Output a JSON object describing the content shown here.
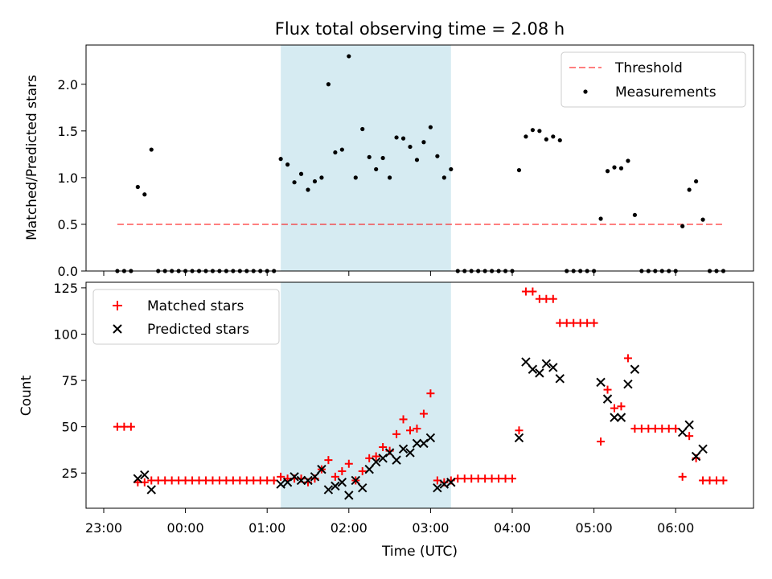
{
  "figure": {
    "title": "Flux total observing time = 2.08 h",
    "x_tick_labels": [
      "23:00",
      "00:00",
      "01:00",
      "02:00",
      "03:00",
      "04:00",
      "05:00",
      "06:00"
    ],
    "xlabel": "Time (UTC)",
    "shaded_region": {
      "start": "01:10",
      "end": "03:15",
      "color": "#add8e6"
    }
  },
  "chart_data": [
    {
      "type": "scatter",
      "ylabel": "Matched/Predicted stars",
      "ylim": [
        0,
        2.42
      ],
      "y_ticks": [
        "0.0",
        "0.5",
        "1.0",
        "1.5",
        "2.0"
      ],
      "legend": {
        "placement": "top-right",
        "entries": [
          "Threshold",
          "Measurements"
        ]
      },
      "threshold": {
        "name": "Threshold",
        "value": 0.5,
        "x_start": "23:10",
        "x_end": "06:35",
        "color": "#ff0000",
        "alpha": 0.5,
        "style": "dashed"
      },
      "series": [
        {
          "name": "Measurements",
          "color": "#000000",
          "points": [
            [
              "23:10",
              0
            ],
            [
              "23:15",
              0
            ],
            [
              "23:20",
              0
            ],
            [
              "23:25",
              0.9
            ],
            [
              "23:30",
              0.82
            ],
            [
              "23:35",
              1.3
            ],
            [
              "23:40",
              0
            ],
            [
              "23:45",
              0
            ],
            [
              "23:50",
              0
            ],
            [
              "23:55",
              0
            ],
            [
              "00:00",
              0
            ],
            [
              "00:05",
              0
            ],
            [
              "00:10",
              0
            ],
            [
              "00:15",
              0
            ],
            [
              "00:20",
              0
            ],
            [
              "00:25",
              0
            ],
            [
              "00:30",
              0
            ],
            [
              "00:35",
              0
            ],
            [
              "00:40",
              0
            ],
            [
              "00:45",
              0
            ],
            [
              "00:50",
              0
            ],
            [
              "00:55",
              0
            ],
            [
              "01:00",
              0
            ],
            [
              "01:05",
              0
            ],
            [
              "01:10",
              1.2
            ],
            [
              "01:15",
              1.14
            ],
            [
              "01:20",
              0.95
            ],
            [
              "01:25",
              1.04
            ],
            [
              "01:30",
              0.87
            ],
            [
              "01:35",
              0.96
            ],
            [
              "01:40",
              1.0
            ],
            [
              "01:45",
              2.0
            ],
            [
              "01:50",
              1.27
            ],
            [
              "01:55",
              1.3
            ],
            [
              "02:00",
              2.3
            ],
            [
              "02:05",
              1.0
            ],
            [
              "02:10",
              1.52
            ],
            [
              "02:15",
              1.22
            ],
            [
              "02:20",
              1.09
            ],
            [
              "02:25",
              1.21
            ],
            [
              "02:30",
              1.0
            ],
            [
              "02:35",
              1.43
            ],
            [
              "02:40",
              1.42
            ],
            [
              "02:45",
              1.33
            ],
            [
              "02:50",
              1.19
            ],
            [
              "02:55",
              1.38
            ],
            [
              "03:00",
              1.54
            ],
            [
              "03:05",
              1.23
            ],
            [
              "03:10",
              1.0
            ],
            [
              "03:15",
              1.09
            ],
            [
              "03:20",
              0
            ],
            [
              "03:25",
              0
            ],
            [
              "03:30",
              0
            ],
            [
              "03:35",
              0
            ],
            [
              "03:40",
              0
            ],
            [
              "03:45",
              0
            ],
            [
              "03:50",
              0
            ],
            [
              "03:55",
              0
            ],
            [
              "04:00",
              0
            ],
            [
              "04:05",
              1.08
            ],
            [
              "04:10",
              1.44
            ],
            [
              "04:15",
              1.51
            ],
            [
              "04:20",
              1.5
            ],
            [
              "04:25",
              1.41
            ],
            [
              "04:30",
              1.44
            ],
            [
              "04:35",
              1.4
            ],
            [
              "04:40",
              0
            ],
            [
              "04:45",
              0
            ],
            [
              "04:50",
              0
            ],
            [
              "04:55",
              0
            ],
            [
              "05:00",
              0
            ],
            [
              "05:05",
              0.56
            ],
            [
              "05:10",
              1.07
            ],
            [
              "05:15",
              1.11
            ],
            [
              "05:20",
              1.1
            ],
            [
              "05:25",
              1.18
            ],
            [
              "05:30",
              0.6
            ],
            [
              "05:35",
              0
            ],
            [
              "05:40",
              0
            ],
            [
              "05:45",
              0
            ],
            [
              "05:50",
              0
            ],
            [
              "05:55",
              0
            ],
            [
              "06:00",
              0
            ],
            [
              "06:05",
              0.48
            ],
            [
              "06:10",
              0.87
            ],
            [
              "06:15",
              0.96
            ],
            [
              "06:20",
              0.55
            ],
            [
              "06:25",
              0
            ],
            [
              "06:30",
              0
            ],
            [
              "06:35",
              0
            ]
          ]
        }
      ]
    },
    {
      "type": "scatter",
      "ylabel": "Count",
      "ylim": [
        6,
        128
      ],
      "y_ticks": [
        "25",
        "50",
        "75",
        "100",
        "125"
      ],
      "legend": {
        "placement": "top-left",
        "entries": [
          "Matched stars",
          "Predicted stars"
        ]
      },
      "series": [
        {
          "name": "Matched stars",
          "marker": "plus",
          "color": "#ff0000",
          "points": [
            [
              "23:10",
              50
            ],
            [
              "23:15",
              50
            ],
            [
              "23:20",
              50
            ],
            [
              "23:25",
              20
            ],
            [
              "23:30",
              20
            ],
            [
              "23:35",
              21
            ],
            [
              "23:40",
              21
            ],
            [
              "23:45",
              21
            ],
            [
              "23:50",
              21
            ],
            [
              "23:55",
              21
            ],
            [
              "00:00",
              21
            ],
            [
              "00:05",
              21
            ],
            [
              "00:10",
              21
            ],
            [
              "00:15",
              21
            ],
            [
              "00:20",
              21
            ],
            [
              "00:25",
              21
            ],
            [
              "00:30",
              21
            ],
            [
              "00:35",
              21
            ],
            [
              "00:40",
              21
            ],
            [
              "00:45",
              21
            ],
            [
              "00:50",
              21
            ],
            [
              "00:55",
              21
            ],
            [
              "01:00",
              21
            ],
            [
              "01:05",
              21
            ],
            [
              "01:10",
              23
            ],
            [
              "01:15",
              22
            ],
            [
              "01:20",
              22
            ],
            [
              "01:25",
              22
            ],
            [
              "01:30",
              20
            ],
            [
              "01:35",
              22
            ],
            [
              "01:40",
              27
            ],
            [
              "01:45",
              32
            ],
            [
              "01:50",
              23
            ],
            [
              "01:55",
              26
            ],
            [
              "02:00",
              30
            ],
            [
              "02:05",
              21
            ],
            [
              "02:10",
              26
            ],
            [
              "02:15",
              33
            ],
            [
              "02:20",
              34
            ],
            [
              "02:25",
              39
            ],
            [
              "02:30",
              37
            ],
            [
              "02:35",
              46
            ],
            [
              "02:40",
              54
            ],
            [
              "02:45",
              48
            ],
            [
              "02:50",
              49
            ],
            [
              "02:55",
              57
            ],
            [
              "03:00",
              68
            ],
            [
              "03:05",
              21
            ],
            [
              "03:10",
              20
            ],
            [
              "03:15",
              21
            ],
            [
              "03:20",
              22
            ],
            [
              "03:25",
              22
            ],
            [
              "03:30",
              22
            ],
            [
              "03:35",
              22
            ],
            [
              "03:40",
              22
            ],
            [
              "03:45",
              22
            ],
            [
              "03:50",
              22
            ],
            [
              "03:55",
              22
            ],
            [
              "04:00",
              22
            ],
            [
              "04:05",
              48
            ],
            [
              "04:10",
              123
            ],
            [
              "04:15",
              123
            ],
            [
              "04:20",
              119
            ],
            [
              "04:25",
              119
            ],
            [
              "04:30",
              119
            ],
            [
              "04:35",
              106
            ],
            [
              "04:40",
              106
            ],
            [
              "04:45",
              106
            ],
            [
              "04:50",
              106
            ],
            [
              "04:55",
              106
            ],
            [
              "05:00",
              106
            ],
            [
              "05:05",
              42
            ],
            [
              "05:10",
              70
            ],
            [
              "05:15",
              60
            ],
            [
              "05:20",
              61
            ],
            [
              "05:25",
              87
            ],
            [
              "05:30",
              49
            ],
            [
              "05:35",
              49
            ],
            [
              "05:40",
              49
            ],
            [
              "05:45",
              49
            ],
            [
              "05:50",
              49
            ],
            [
              "05:55",
              49
            ],
            [
              "06:00",
              49
            ],
            [
              "06:05",
              23
            ],
            [
              "06:10",
              45
            ],
            [
              "06:15",
              33
            ],
            [
              "06:20",
              21
            ],
            [
              "06:25",
              21
            ],
            [
              "06:30",
              21
            ],
            [
              "06:35",
              21
            ]
          ]
        },
        {
          "name": "Predicted stars",
          "marker": "x",
          "color": "#000000",
          "points": [
            [
              "23:25",
              22
            ],
            [
              "23:30",
              24
            ],
            [
              "23:35",
              16
            ],
            [
              "01:10",
              19
            ],
            [
              "01:15",
              20
            ],
            [
              "01:20",
              23
            ],
            [
              "01:25",
              21
            ],
            [
              "01:30",
              21
            ],
            [
              "01:35",
              23
            ],
            [
              "01:40",
              27
            ],
            [
              "01:45",
              16
            ],
            [
              "01:50",
              18
            ],
            [
              "01:55",
              20
            ],
            [
              "02:00",
              13
            ],
            [
              "02:05",
              21
            ],
            [
              "02:10",
              17
            ],
            [
              "02:15",
              27
            ],
            [
              "02:20",
              31
            ],
            [
              "02:25",
              33
            ],
            [
              "02:30",
              36
            ],
            [
              "02:35",
              32
            ],
            [
              "02:40",
              38
            ],
            [
              "02:45",
              36
            ],
            [
              "02:50",
              41
            ],
            [
              "02:55",
              41
            ],
            [
              "03:00",
              44
            ],
            [
              "03:05",
              17
            ],
            [
              "03:10",
              19
            ],
            [
              "03:15",
              20
            ],
            [
              "04:05",
              44
            ],
            [
              "04:10",
              85
            ],
            [
              "04:15",
              81
            ],
            [
              "04:20",
              79
            ],
            [
              "04:25",
              84
            ],
            [
              "04:30",
              82
            ],
            [
              "04:35",
              76
            ],
            [
              "05:05",
              74
            ],
            [
              "05:10",
              65
            ],
            [
              "05:15",
              55
            ],
            [
              "05:20",
              55
            ],
            [
              "05:25",
              73
            ],
            [
              "05:30",
              81
            ],
            [
              "06:05",
              47
            ],
            [
              "06:10",
              51
            ],
            [
              "06:15",
              34
            ],
            [
              "06:20",
              38
            ]
          ]
        }
      ]
    }
  ]
}
